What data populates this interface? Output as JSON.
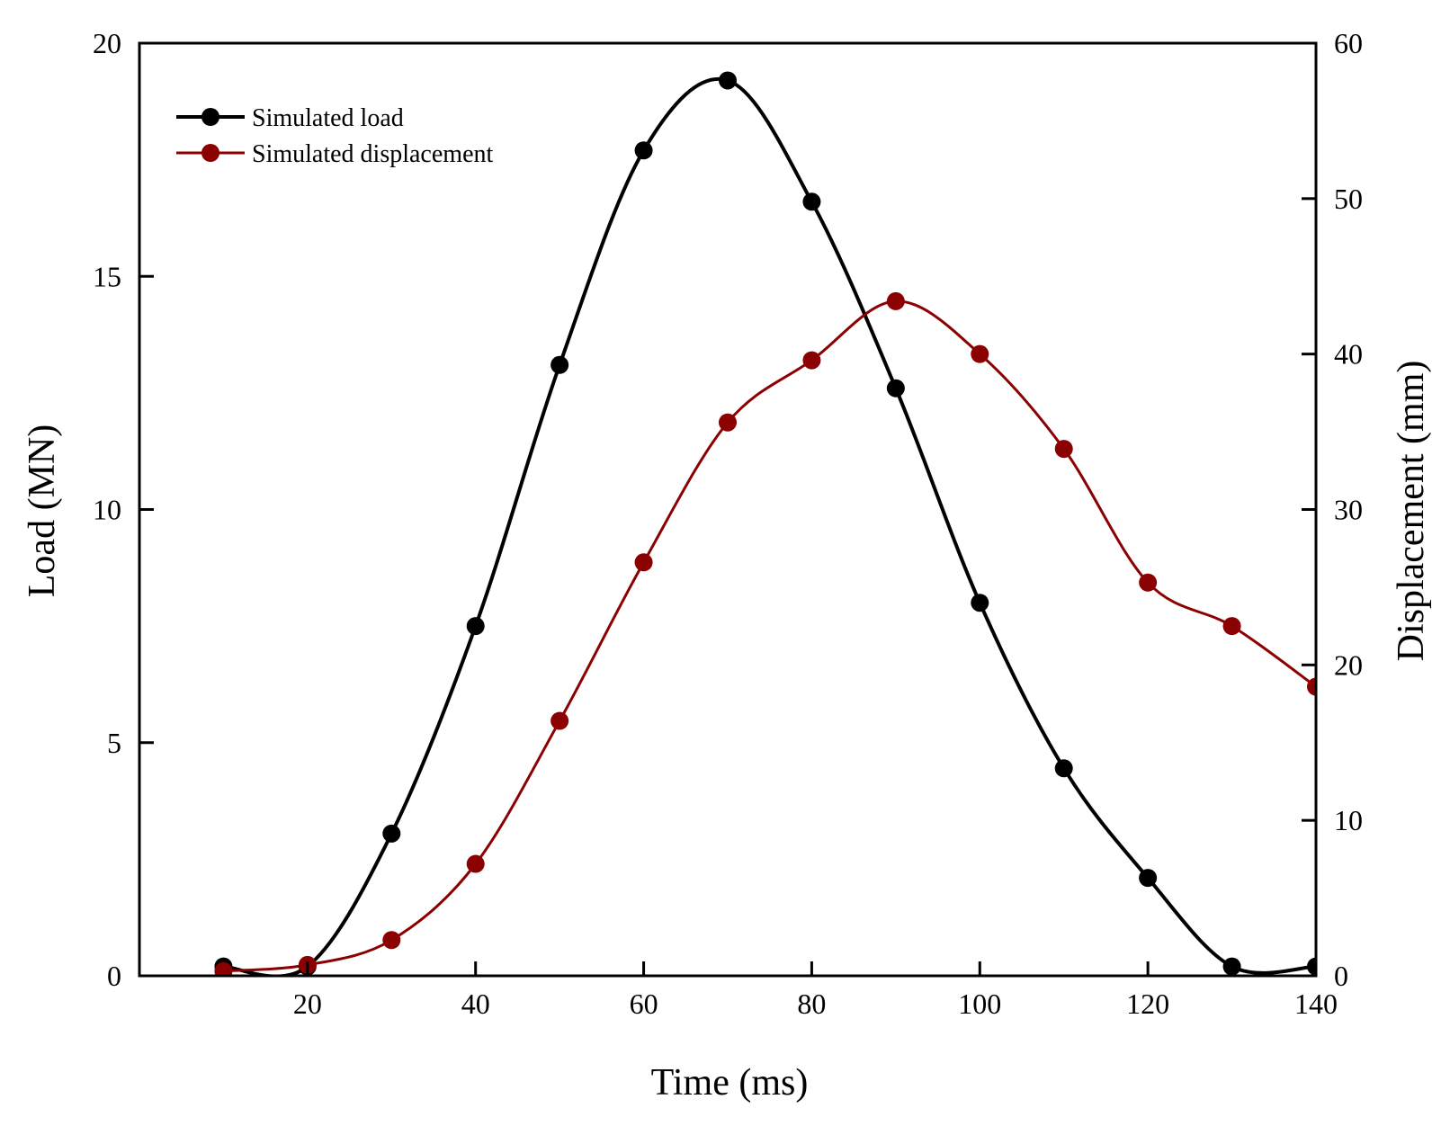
{
  "chart_data": {
    "type": "line",
    "title": "",
    "xlabel": "Time (ms)",
    "ylabel": "Load (MN)",
    "y2label": "Displacement (mm)",
    "xlim": [
      0,
      140
    ],
    "ylim": [
      0,
      20
    ],
    "y2lim": [
      0,
      60
    ],
    "xticks": [
      20,
      40,
      60,
      80,
      100,
      120,
      140
    ],
    "yticks": [
      0,
      5,
      10,
      15,
      20
    ],
    "y2ticks": [
      0,
      10,
      20,
      30,
      40,
      50,
      60
    ],
    "grid": false,
    "legend_position": "top-left",
    "series": [
      {
        "name": "Simulated load",
        "axis": "left",
        "color": "#000000",
        "x": [
          10,
          20,
          30,
          40,
          50,
          60,
          70,
          80,
          90,
          100,
          110,
          120,
          130,
          140
        ],
        "values": [
          0.2,
          0.2,
          3.05,
          7.5,
          13.1,
          17.7,
          19.2,
          16.6,
          12.6,
          8.0,
          4.45,
          2.1,
          0.2,
          0.2
        ]
      },
      {
        "name": "Simulated displacement",
        "axis": "right",
        "color": "#8b0000",
        "x": [
          10,
          20,
          30,
          40,
          50,
          60,
          70,
          80,
          90,
          100,
          110,
          120,
          130,
          140
        ],
        "values": [
          0.3,
          0.7,
          2.3,
          7.2,
          16.4,
          26.6,
          35.6,
          39.6,
          43.4,
          40.0,
          33.9,
          25.3,
          22.5,
          18.6
        ]
      }
    ]
  }
}
